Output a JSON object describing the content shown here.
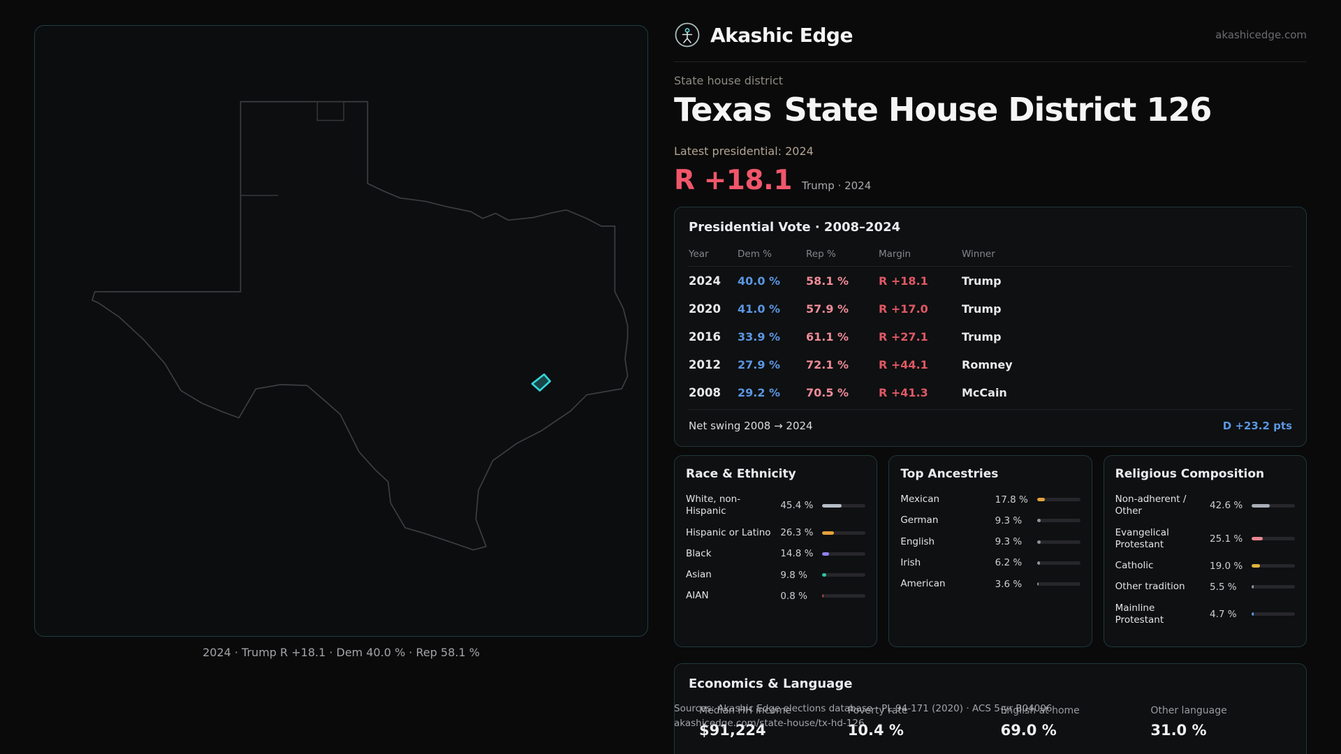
{
  "brand": {
    "name": "Akashic Edge",
    "domain": "akashicedge.com",
    "logo_icon": "circle-figure-logo"
  },
  "page": {
    "section_label": "State house district",
    "title_region": "Texas",
    "title_name": "State House District 126",
    "latest_label": "Latest presidential: 2024",
    "lead_margin": "R +18.1",
    "lead_context": "Trump · 2024"
  },
  "map": {
    "caption": "2024 · Trump R +18.1 · Dem 40.0 % · Rep 58.1 %",
    "state_name": "Texas",
    "marker_color": "#35d6dd",
    "outline_color": "#3d3d42"
  },
  "colors": {
    "dem_blue": "#5a96e3",
    "rep_pink": "#f08b98",
    "margin_red": "#e05864",
    "accent_red": "#f1566a",
    "accent_cyan": "#35d6dd"
  },
  "presidential_table": {
    "title": "Presidential Vote · 2008–2024",
    "columns": [
      "Year",
      "Dem %",
      "Rep %",
      "Margin",
      "Winner"
    ],
    "rows": [
      {
        "year": "2024",
        "dem": "40.0 %",
        "rep": "58.1 %",
        "margin": "R +18.1",
        "winner": "Trump"
      },
      {
        "year": "2020",
        "dem": "41.0 %",
        "rep": "57.9 %",
        "margin": "R +17.0",
        "winner": "Trump"
      },
      {
        "year": "2016",
        "dem": "33.9 %",
        "rep": "61.1 %",
        "margin": "R +27.1",
        "winner": "Trump"
      },
      {
        "year": "2012",
        "dem": "27.9 %",
        "rep": "72.1 %",
        "margin": "R +44.1",
        "winner": "Romney"
      },
      {
        "year": "2008",
        "dem": "29.2 %",
        "rep": "70.5 %",
        "margin": "R +41.3",
        "winner": "McCain"
      }
    ],
    "net_swing_label": "Net swing 2008 → 2024",
    "net_swing_value": "D +23.2 pts"
  },
  "race_card": {
    "title": "Race & Ethnicity",
    "rows": [
      {
        "label": "White, non-Hispanic",
        "value": "45.4 %",
        "pct": 45.4,
        "color": "#b7bdc6"
      },
      {
        "label": "Hispanic or Latino",
        "value": "26.3 %",
        "pct": 26.3,
        "color": "#e5a03b"
      },
      {
        "label": "Black",
        "value": "14.8 %",
        "pct": 14.8,
        "color": "#8c82ea"
      },
      {
        "label": "Asian",
        "value": "9.8 %",
        "pct": 9.8,
        "color": "#2ec4a0"
      },
      {
        "label": "AIAN",
        "value": "0.8 %",
        "pct": 0.8,
        "color": "#b5524c"
      }
    ]
  },
  "ancestry_card": {
    "title": "Top Ancestries",
    "rows": [
      {
        "label": "Mexican",
        "value": "17.8 %",
        "pct": 17.8,
        "color": "#e5a03b"
      },
      {
        "label": "German",
        "value": "9.3 %",
        "pct": 9.3,
        "color": "#8f959d"
      },
      {
        "label": "English",
        "value": "9.3 %",
        "pct": 9.3,
        "color": "#8f959d"
      },
      {
        "label": "Irish",
        "value": "6.2 %",
        "pct": 6.2,
        "color": "#8f959d"
      },
      {
        "label": "American",
        "value": "3.6 %",
        "pct": 3.6,
        "color": "#8f959d"
      }
    ]
  },
  "religion_card": {
    "title": "Religious Composition",
    "rows": [
      {
        "label": "Non-adherent / Other",
        "value": "42.6 %",
        "pct": 42.6,
        "color": "#a9aeb6"
      },
      {
        "label": "Evangelical Protestant",
        "value": "25.1 %",
        "pct": 25.1,
        "color": "#e98691"
      },
      {
        "label": "Catholic",
        "value": "19.0 %",
        "pct": 19.0,
        "color": "#e0b23f"
      },
      {
        "label": "Other tradition",
        "value": "5.5 %",
        "pct": 5.5,
        "color": "#8f959d"
      },
      {
        "label": "Mainline Protestant",
        "value": "4.7 %",
        "pct": 4.7,
        "color": "#5a96e3"
      }
    ]
  },
  "economics_card": {
    "title": "Economics & Language",
    "stats": [
      {
        "label": "Median HH income",
        "value": "$91,224"
      },
      {
        "label": "Poverty rate",
        "value": "10.4 %"
      },
      {
        "label": "English at home",
        "value": "69.0 %"
      },
      {
        "label": "Other language",
        "value": "31.0 %"
      }
    ]
  },
  "footer": {
    "line1": "Sources: Akashic Edge elections database · PL 94-171 (2020) · ACS 5-yr B04006",
    "line2": "akashicedge.com/state-house/tx-hd-126"
  }
}
